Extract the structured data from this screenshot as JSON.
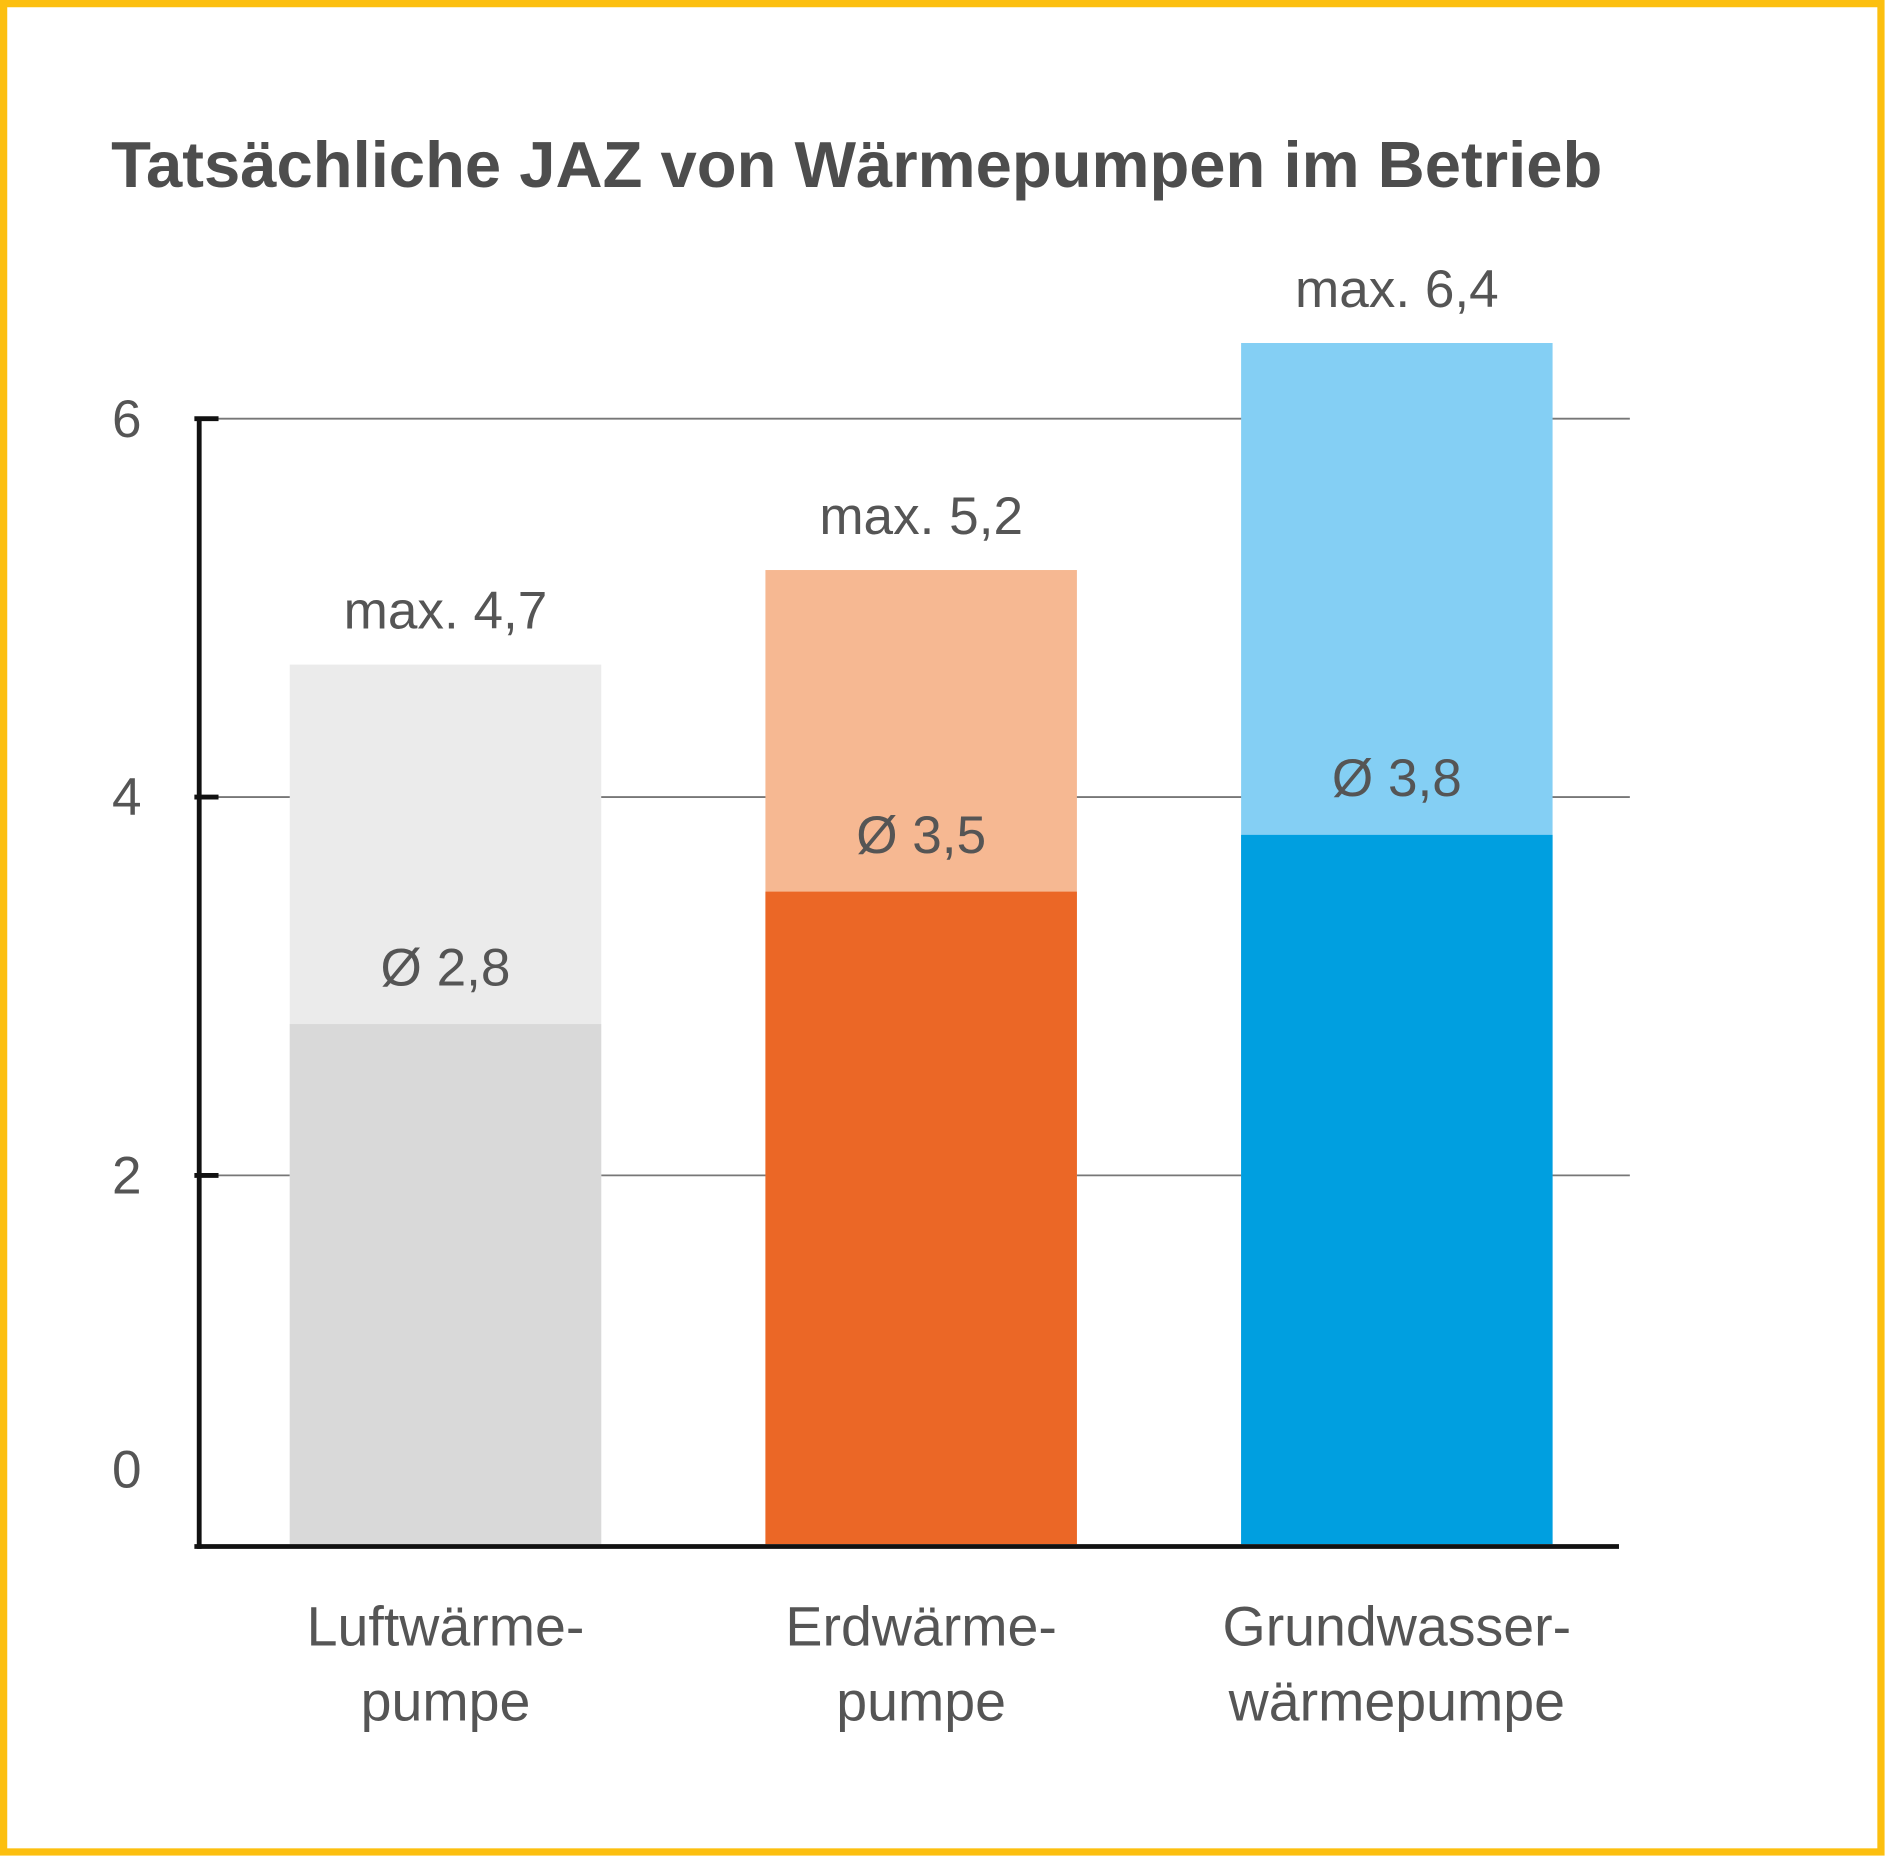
{
  "chart_data": {
    "type": "bar",
    "title": "Tatsächliche JAZ von Wärmepumpen im Betrieb",
    "xlabel": "",
    "ylabel": "",
    "ylim": [
      0,
      6
    ],
    "yticks": [
      "0",
      "2",
      "4",
      "6"
    ],
    "grid": true,
    "categories": [
      [
        "Luftwärme-",
        "pumpe"
      ],
      [
        "Erdwärme-",
        "pumpe"
      ],
      [
        "Grundwasser-",
        "wärmepumpe"
      ]
    ],
    "average": [
      2.8,
      3.5,
      3.8
    ],
    "maximum": [
      4.7,
      5.2,
      6.4
    ],
    "average_labels": [
      "Ø 2,8",
      "Ø 3,5",
      "Ø 3,8"
    ],
    "maximum_labels": [
      "max. 4,7",
      "max. 5,2",
      "max. 6,4"
    ],
    "colors": {
      "average": [
        "#d9d9d9",
        "#eb6726",
        "#009fe0"
      ],
      "maximum": [
        "#ebebeb",
        "#f6b892",
        "#84cff4"
      ],
      "border": "#fcbf0f"
    }
  }
}
